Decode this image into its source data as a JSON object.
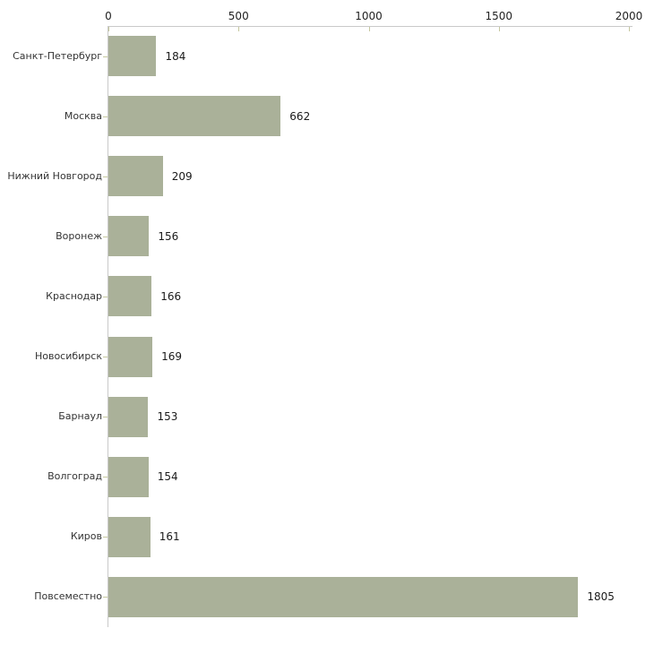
{
  "chart_data": {
    "type": "bar",
    "orientation": "horizontal",
    "title": "",
    "categories": [
      "Санкт-Петербург",
      "Москва",
      "Нижний Новгород",
      "Воронеж",
      "Краснодар",
      "Новосибирск",
      "Барнаул",
      "Волгоград",
      "Киров",
      "Повсеместно"
    ],
    "values": [
      184,
      662,
      209,
      156,
      166,
      169,
      153,
      154,
      161,
      1805
    ],
    "value_labels": [
      "184",
      "662",
      "209",
      "156",
      "166",
      "169",
      "153",
      "154",
      "161",
      "1805"
    ],
    "xlim": [
      0,
      2000
    ],
    "x_ticks": [
      0,
      500,
      1000,
      1500,
      2000
    ],
    "x_tick_labels": [
      "0",
      "500",
      "1000",
      "1500",
      "2000"
    ],
    "x_axis_position": "top",
    "grid": false,
    "legend": "none",
    "colors": {
      "bar": "#aab199",
      "axis_line": "#c9c9c9",
      "tick_mark": "#c5c79e",
      "tick_label": "#222222",
      "category_label": "#333333",
      "value_label": "#1a1a1a",
      "background": "#ffffff"
    }
  }
}
